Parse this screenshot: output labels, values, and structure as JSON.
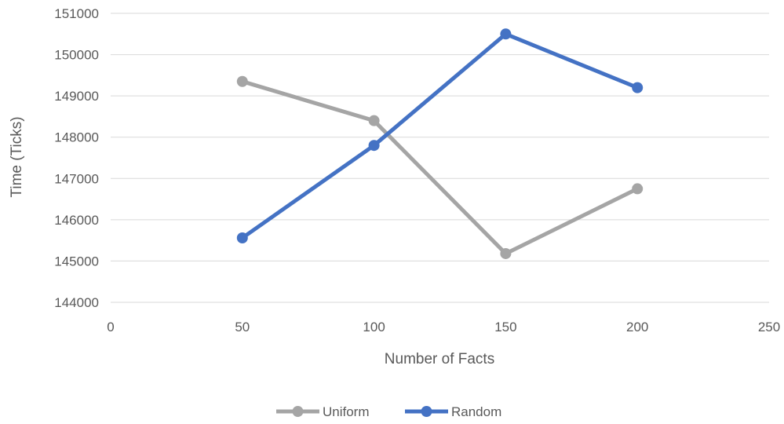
{
  "chart_data": {
    "type": "line",
    "title": "",
    "xlabel": "Number of Facts",
    "ylabel": "Time (Ticks)",
    "xlim": [
      0,
      250
    ],
    "ylim": [
      144000,
      151000
    ],
    "x_ticks": [
      0,
      50,
      100,
      150,
      200,
      250
    ],
    "y_ticks": [
      144000,
      145000,
      146000,
      147000,
      148000,
      149000,
      150000,
      151000
    ],
    "grid": "horizontal",
    "legend_position": "bottom",
    "series": [
      {
        "name": "Uniform",
        "color": "#a5a5a5",
        "x": [
          50,
          100,
          150,
          200
        ],
        "y": [
          149350,
          148400,
          145180,
          146750
        ]
      },
      {
        "name": "Random",
        "color": "#4472c4",
        "x": [
          50,
          100,
          150,
          200
        ],
        "y": [
          145560,
          147800,
          150500,
          149200
        ]
      }
    ]
  }
}
